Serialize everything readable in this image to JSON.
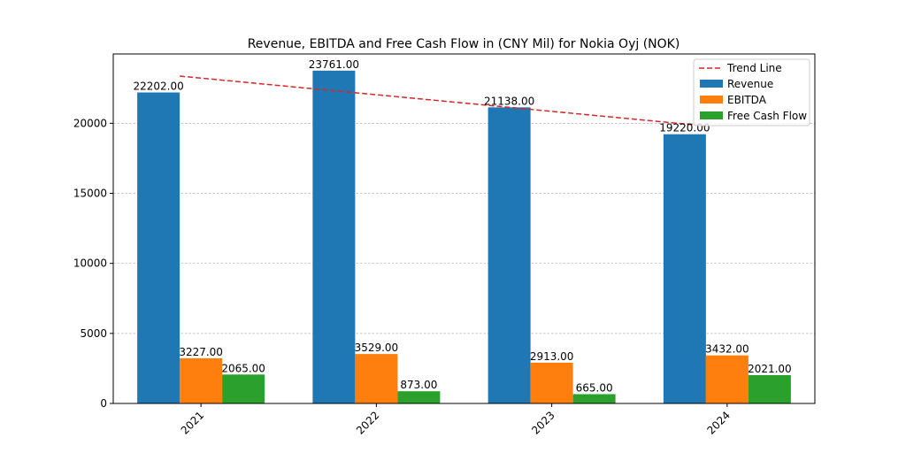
{
  "chart_data": {
    "type": "bar",
    "title": "Revenue, EBITDA and Free Cash Flow in (CNY Mil) for Nokia Oyj (NOK)",
    "xlabel": "",
    "ylabel": "",
    "categories": [
      "2021",
      "2022",
      "2023",
      "2024"
    ],
    "series": [
      {
        "name": "Revenue",
        "values": [
          22202.0,
          23761.0,
          21138.0,
          19220.0
        ],
        "color": "#1f77b4",
        "labels": [
          "22202.00",
          "23761.00",
          "21138.00",
          "19220.00"
        ]
      },
      {
        "name": "EBITDA",
        "values": [
          3227.0,
          3529.0,
          2913.0,
          3432.0
        ],
        "color": "#ff7f0e",
        "labels": [
          "3227.00",
          "3529.00",
          "2913.00",
          "3432.00"
        ]
      },
      {
        "name": "Free Cash Flow",
        "values": [
          2065.0,
          873.0,
          665.0,
          2021.0
        ],
        "color": "#2ca02c",
        "labels": [
          "2065.00",
          "873.00",
          "665.00",
          "2021.00"
        ]
      }
    ],
    "trend_line": {
      "name": "Trend Line",
      "color": "#d62728",
      "start": 23370,
      "end": 19810,
      "style": "dashed"
    },
    "ylim": [
      0,
      24950
    ],
    "yticks": [
      0,
      5000,
      10000,
      15000,
      20000
    ],
    "ytick_labels": [
      "0",
      "5000",
      "10000",
      "15000",
      "20000"
    ],
    "grid": "y-dashed",
    "legend_position": "top-right"
  }
}
